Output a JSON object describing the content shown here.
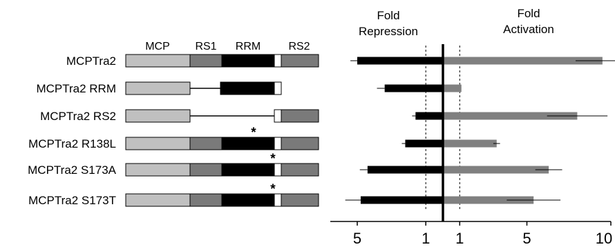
{
  "domains": {
    "headers": [
      {
        "label": "MCP"
      },
      {
        "label": "RS1"
      },
      {
        "label": "RRM"
      },
      {
        "label": "RS2"
      }
    ],
    "colors": {
      "MCP": "#c0c0c0",
      "RS1": "#7a7a7a",
      "RRM": "#000000",
      "link": "#ffffff",
      "RS2": "#7a7a7a"
    }
  },
  "constructs": [
    {
      "label": "MCPTra2",
      "domains": [
        "MCP",
        "RS1",
        "RRM",
        "link",
        "RS2"
      ],
      "mutation": ""
    },
    {
      "label": "MCPTra2 RRM",
      "domains": [
        "MCP",
        "RRM",
        "link"
      ],
      "mutation": ""
    },
    {
      "label": "MCPTra2 RS2",
      "domains": [
        "MCP",
        "link",
        "RS2"
      ],
      "mutation": ""
    },
    {
      "label": "MCPTra2 R138L",
      "domains": [
        "MCP",
        "RS1",
        "RRM",
        "link",
        "RS2"
      ],
      "mutation": "*"
    },
    {
      "label": "MCPTra2 S173A",
      "domains": [
        "MCP",
        "RS1",
        "RRM",
        "link",
        "RS2"
      ],
      "mutation": "*"
    },
    {
      "label": "MCPTra2 S173T",
      "domains": [
        "MCP",
        "RS1",
        "RRM",
        "link",
        "RS2"
      ],
      "mutation": "*"
    }
  ],
  "chart_data": {
    "type": "bar",
    "orientation": "horizontal",
    "titles": {
      "left": [
        "Fold",
        "Repression"
      ],
      "right": [
        "Fold",
        "Activation"
      ]
    },
    "categories": [
      "MCPTra2",
      "MCPTra2 RRM",
      "MCPTra2 RS2",
      "MCPTra2 R138L",
      "MCPTra2 S173A",
      "MCPTra2 S173T"
    ],
    "series": [
      {
        "side": "repression",
        "color": "#000000",
        "values": [
          5.0,
          3.4,
          1.6,
          2.2,
          4.4,
          4.8
        ],
        "err": [
          0.4,
          0.45,
          0.2,
          0.2,
          0.45,
          0.9
        ]
      },
      {
        "side": "activation",
        "color": "#808080",
        "values": [
          9.5,
          1.1,
          8.0,
          3.2,
          6.3,
          5.4
        ],
        "err": [
          1.6,
          0.0,
          1.8,
          0.2,
          0.8,
          1.6
        ]
      }
    ],
    "x_ticks": {
      "repression": [
        {
          "value": 5,
          "label": "5"
        },
        {
          "value": 1,
          "label": "1"
        }
      ],
      "activation": [
        {
          "value": 1,
          "label": "1"
        },
        {
          "value": 5,
          "label": "5"
        },
        {
          "value": 10,
          "label": "10"
        }
      ]
    },
    "axis_range": {
      "repression_max": 5.5,
      "activation_max": 10
    },
    "reference_lines": "dashed at 1 on both sides, solid divider at 0"
  }
}
